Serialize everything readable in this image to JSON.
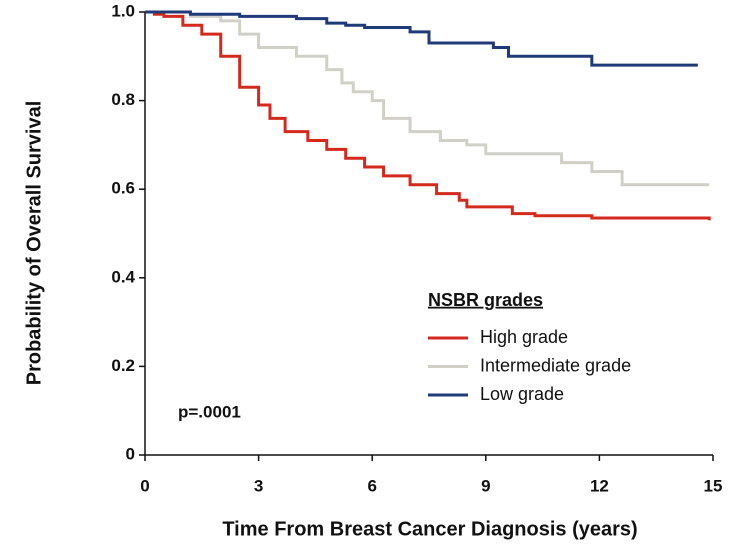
{
  "chart_data": {
    "type": "line",
    "step": true,
    "x_label": "Time From Breast Cancer Diagnosis (years)",
    "y_label": "Probability of Overall Survival",
    "annotation": "p=.0001",
    "legend_title": "NSBR grades",
    "legend": "center-right",
    "xlim": [
      0,
      15
    ],
    "xticks": [
      0,
      3,
      6,
      9,
      12,
      15
    ],
    "ylim": [
      0,
      1
    ],
    "yticks": [
      0,
      0.2,
      0.4,
      0.6,
      0.8,
      {
        "value": 1,
        "label": "1.0"
      }
    ],
    "series": [
      {
        "name": "High grade",
        "color": "#d42a1e",
        "x": [
          0,
          0.25,
          0.5,
          1,
          1.5,
          2,
          2.5,
          3,
          3.3,
          3.7,
          4.3,
          4.8,
          5.3,
          5.8,
          6.3,
          7,
          7.7,
          8.3,
          8.5,
          9.5,
          9.7,
          10.3,
          11.8,
          14.9
        ],
        "values": [
          1,
          0.995,
          0.99,
          0.97,
          0.95,
          0.9,
          0.83,
          0.79,
          0.76,
          0.73,
          0.71,
          0.69,
          0.67,
          0.65,
          0.63,
          0.61,
          0.59,
          0.575,
          0.56,
          0.56,
          0.545,
          0.54,
          0.535,
          0.53
        ]
      },
      {
        "name": "Intermediate grade",
        "color": "#d0d0c8",
        "x": [
          0,
          1.2,
          2,
          2.5,
          3,
          4,
          4.8,
          5.2,
          5.5,
          6,
          6.3,
          7,
          7.8,
          8.5,
          9,
          10.8,
          11,
          11.8,
          12.6,
          14.9
        ],
        "values": [
          1,
          0.99,
          0.98,
          0.95,
          0.92,
          0.9,
          0.87,
          0.84,
          0.82,
          0.8,
          0.76,
          0.73,
          0.71,
          0.7,
          0.68,
          0.68,
          0.66,
          0.64,
          0.61,
          0.61
        ]
      },
      {
        "name": "Low grade",
        "color": "#1f3a78",
        "x": [
          0,
          1.2,
          2.5,
          4,
          4.8,
          5.3,
          5.8,
          7,
          7.5,
          9.2,
          9.6,
          11.8,
          14.6
        ],
        "values": [
          1,
          0.995,
          0.99,
          0.985,
          0.975,
          0.97,
          0.965,
          0.955,
          0.93,
          0.92,
          0.9,
          0.88,
          0.88
        ]
      }
    ]
  }
}
